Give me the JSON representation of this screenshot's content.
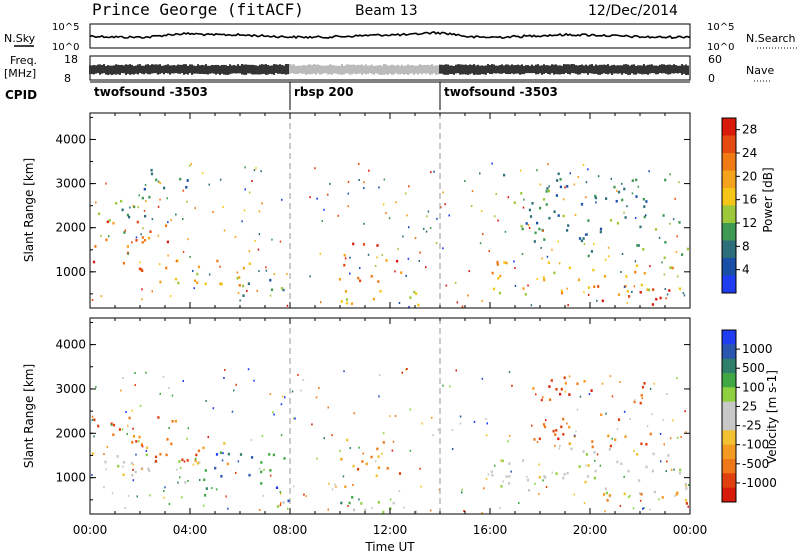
{
  "header": {
    "title": "Prince George (fitACF)",
    "beam": "Beam 13",
    "date": "12/Dec/2014"
  },
  "summary": {
    "nsky_label": "N.Sky",
    "nsky_ticks": [
      "10^5",
      "10^0"
    ],
    "nsearch_label": "N.Search",
    "nsearch_ticks": [
      "10^5",
      "10^0"
    ],
    "freq_label": "Freq.",
    "freq_unit": "[MHz]",
    "freq_ticks": [
      "18",
      "8"
    ],
    "nave_label": "Nave",
    "nave_ticks": [
      "60",
      "0"
    ],
    "cpid_label": "CPID",
    "cpid_segments": [
      {
        "label": "twofsound -3503",
        "start_h": 0,
        "end_h": 8
      },
      {
        "label": "rbsp 200",
        "start_h": 8,
        "end_h": 14
      },
      {
        "label": "twofsound -3503",
        "start_h": 14,
        "end_h": 24
      }
    ]
  },
  "chart_data": [
    {
      "type": "heatmap",
      "panel": "power",
      "ylabel": "Slant Range [km]",
      "xlim": [
        0,
        24
      ],
      "ylim": [
        180,
        4600
      ],
      "yticks": [
        1000,
        2000,
        3000,
        4000
      ],
      "colorbar_label": "Power [dB]",
      "colorbar_ticks": [
        "4",
        "8",
        "12",
        "16",
        "20",
        "24",
        "28"
      ],
      "colors": [
        "#1f3cf0",
        "#1a4fa8",
        "#2e6e7a",
        "#3e9a52",
        "#9cc83a",
        "#f5c518",
        "#f5a21c",
        "#f07a14",
        "#e54a10",
        "#d81a0a"
      ],
      "echo_regions": [
        {
          "t0": 0.0,
          "t1": 3.2,
          "r0": 1000,
          "r1": 2200,
          "level": 0.82
        },
        {
          "t0": 0.3,
          "t1": 2.5,
          "r0": 1900,
          "r1": 2700,
          "level": 0.35
        },
        {
          "t0": 1.5,
          "t1": 4.0,
          "r0": 2700,
          "r1": 3400,
          "level": 0.2
        },
        {
          "t0": 2.5,
          "t1": 6.5,
          "r0": 700,
          "r1": 1400,
          "level": 0.6
        },
        {
          "t0": 5.0,
          "t1": 8.0,
          "r0": 400,
          "r1": 900,
          "level": 0.3
        },
        {
          "t0": 8.0,
          "t1": 13.5,
          "r0": 250,
          "r1": 600,
          "level": 0.55
        },
        {
          "t0": 9.8,
          "t1": 12.5,
          "r0": 800,
          "r1": 1700,
          "level": 0.85
        },
        {
          "t0": 16.0,
          "t1": 24.0,
          "r0": 500,
          "r1": 1300,
          "level": 0.62
        },
        {
          "t0": 17.0,
          "t1": 24.0,
          "r0": 1300,
          "r1": 2300,
          "level": 0.3
        },
        {
          "t0": 19.5,
          "t1": 23.5,
          "r0": 280,
          "r1": 700,
          "level": 0.92
        },
        {
          "t0": 16.5,
          "t1": 23.0,
          "r0": 2300,
          "r1": 3300,
          "level": 0.25
        }
      ]
    },
    {
      "type": "heatmap",
      "panel": "velocity",
      "xlabel": "Time UT",
      "ylabel": "Slant Range [km]",
      "xlim": [
        0,
        24
      ],
      "ylim": [
        180,
        4600
      ],
      "yticks": [
        1000,
        2000,
        3000,
        4000
      ],
      "xticks": [
        "00:00",
        "04:00",
        "08:00",
        "12:00",
        "16:00",
        "20:00",
        "00:00"
      ],
      "colorbar_label": "Velocity [m s-1]",
      "colorbar_ticks": [
        "1000",
        "500",
        "100",
        "25",
        "-25",
        "-100",
        "-500",
        "-1000"
      ],
      "colors": [
        "#1f3cf0",
        "#2c55b0",
        "#2f7f6a",
        "#3fa845",
        "#8ed040",
        "#c8c8c8",
        "#c8c8c8",
        "#f2c030",
        "#f59a20",
        "#f07818",
        "#e04010",
        "#d81a0a"
      ],
      "echo_regions": [
        {
          "t0": 0.0,
          "t1": 3.5,
          "r0": 1700,
          "r1": 2400,
          "level": 0.82
        },
        {
          "t0": 0.0,
          "t1": 4.5,
          "r0": 900,
          "r1": 1600,
          "level": 0.5
        },
        {
          "t0": 1.5,
          "t1": 5.5,
          "r0": 1300,
          "r1": 2000,
          "level": 0.8
        },
        {
          "t0": 4.5,
          "t1": 8.0,
          "r0": 500,
          "r1": 1600,
          "level": 0.15
        },
        {
          "t0": 7.0,
          "t1": 13.0,
          "r0": 200,
          "r1": 600,
          "level": 0.35
        },
        {
          "t0": 10.0,
          "t1": 12.5,
          "r0": 800,
          "r1": 1900,
          "level": 0.75
        },
        {
          "t0": 16.0,
          "t1": 24.0,
          "r0": 600,
          "r1": 1700,
          "level": 0.5
        },
        {
          "t0": 17.5,
          "t1": 22.5,
          "r0": 1700,
          "r1": 3300,
          "level": 0.85
        },
        {
          "t0": 20.0,
          "t1": 24.0,
          "r0": 300,
          "r1": 700,
          "level": 0.8
        }
      ]
    }
  ]
}
